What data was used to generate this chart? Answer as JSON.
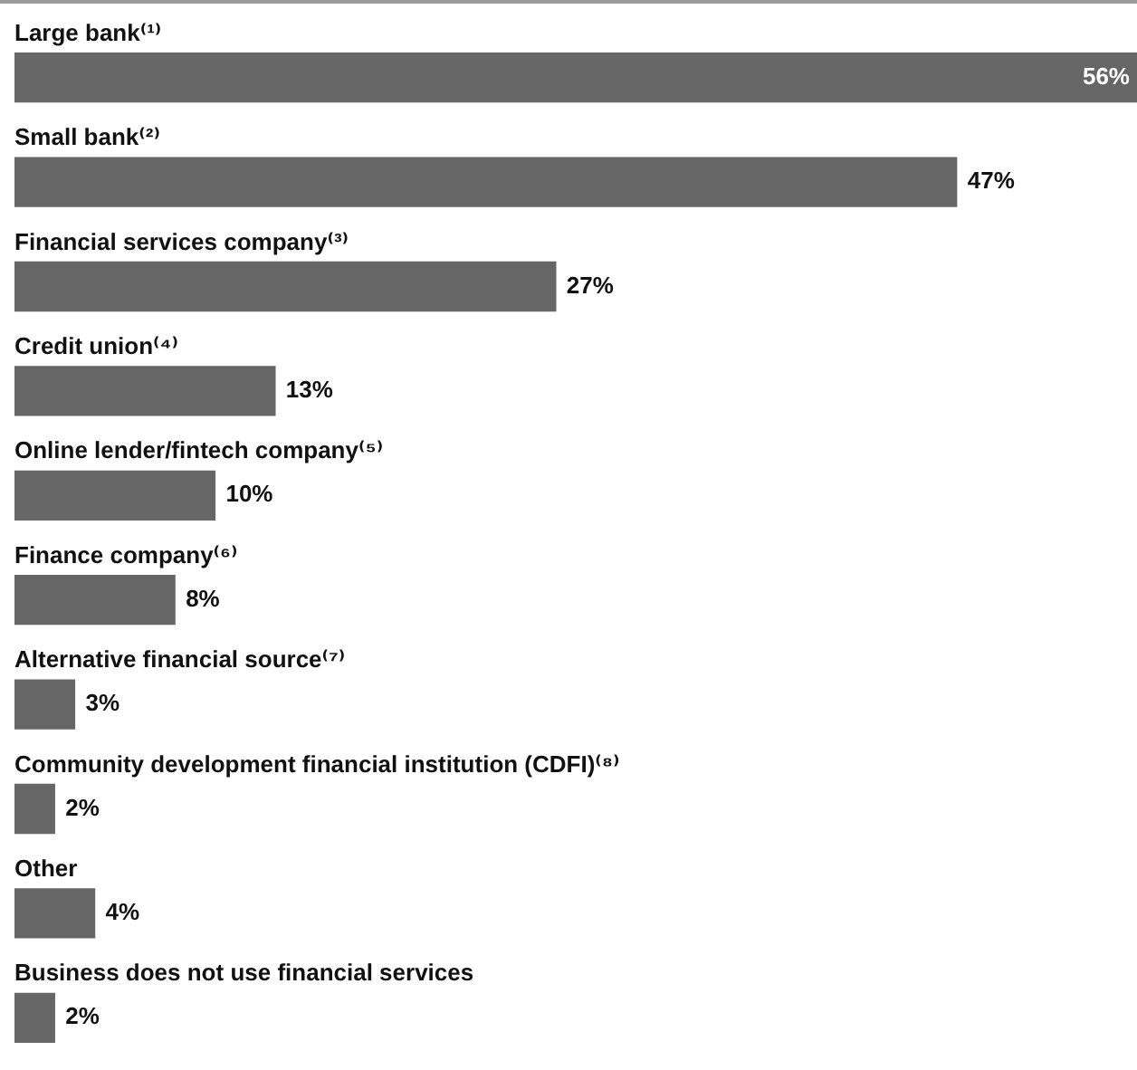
{
  "chart_data": {
    "type": "bar",
    "orientation": "horizontal",
    "categories": [
      "Large bank⁽¹⁾",
      "Small bank⁽²⁾",
      "Financial services company⁽³⁾",
      "Credit union⁽⁴⁾",
      "Online lender/fintech company⁽⁵⁾",
      "Finance company⁽⁶⁾",
      "Alternative financial source⁽⁷⁾",
      "Community development financial institution (CDFI)⁽⁸⁾",
      "Other",
      "Business does not use financial services"
    ],
    "values": [
      56,
      47,
      27,
      13,
      10,
      8,
      3,
      2,
      4,
      2
    ],
    "value_labels": [
      "56%",
      "47%",
      "27%",
      "13%",
      "10%",
      "8%",
      "3%",
      "2%",
      "4%",
      "2%"
    ],
    "color": "#666666"
  }
}
